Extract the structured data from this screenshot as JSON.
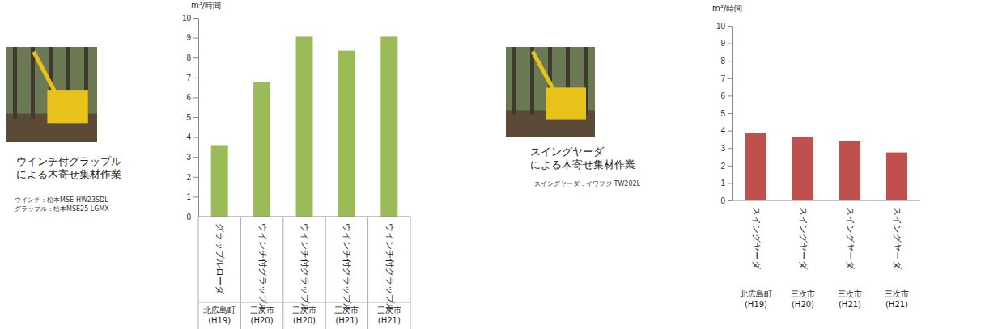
{
  "photos": [
    {
      "caption": [
        "ウインチ付グラップル",
        "による木寄せ集材作業"
      ],
      "spec": [
        "ウインチ：松本MSE-HW23SDL",
        "グラップル：松本MSE25 LGMX"
      ]
    },
    {
      "caption": [
        "スイングヤーダ",
        "による木寄せ集材作業"
      ],
      "spec": [
        "スイングヤーダ：イワフジ TW202L"
      ]
    }
  ],
  "chart_data": [
    {
      "type": "bar",
      "y_label": "m³/時間",
      "categories": [
        "グラップルローダ",
        "ウインチ付グラップル",
        "ウインチ付グラップル",
        "ウインチ付グラップル",
        "ウインチ付グラップル"
      ],
      "sublabels": [
        "北広島町\n(H19)",
        "三次市\n(H20)",
        "三次市\n(H20)",
        "三次市\n(H21)",
        "三次市\n(H21)"
      ],
      "values": [
        3.6,
        6.75,
        9.05,
        8.35,
        9.05
      ],
      "color": "#9bbb59",
      "ylim": [
        0,
        10
      ],
      "yticks": [
        0,
        1,
        2,
        3,
        4,
        5,
        6,
        7,
        8,
        9,
        10
      ],
      "grid": false
    },
    {
      "type": "bar",
      "y_label": "m³/時間",
      "categories": [
        "スイングヤーダ",
        "スイングヤーダ",
        "スイングヤーダ",
        "スイングヤーダ"
      ],
      "sublabels": [
        "北広島町\n(H19)",
        "三次市\n(H20)",
        "三次市\n(H21)",
        "三次市\n(H21)"
      ],
      "values": [
        3.85,
        3.65,
        3.4,
        2.75
      ],
      "color": "#c0504d",
      "ylim": [
        0,
        10
      ],
      "yticks": [
        0,
        1,
        2,
        3,
        4,
        5,
        6,
        7,
        8,
        9,
        10
      ],
      "grid": false
    }
  ]
}
